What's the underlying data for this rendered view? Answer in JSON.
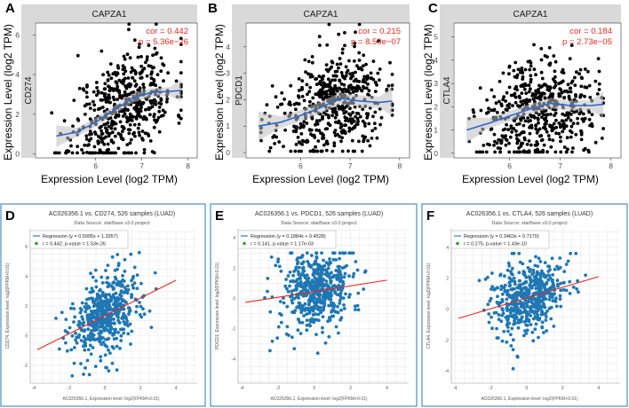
{
  "chart_data": [
    {
      "type": "scatter",
      "panel": "A",
      "strip_title": "CAPZA1",
      "xlabel": "Expression Level (log2 TPM)",
      "ylabel": "Expression Level (log2 TPM)",
      "y_gene": "CD274",
      "xlim": [
        4.7,
        8.2
      ],
      "ylim": [
        -0.2,
        6.6
      ],
      "xticks": [
        6,
        7,
        8
      ],
      "yticks": [
        0,
        2,
        4,
        6
      ],
      "corr_label": "cor = 0.442",
      "p_label": "p = 5.36e−26",
      "cor": 0.442,
      "n": 526,
      "seed": 11,
      "smooth": {
        "x": [
          5.15,
          5.6,
          6.0,
          6.4,
          6.8,
          7.2,
          7.6,
          7.85
        ],
        "y": [
          0.9,
          1.1,
          1.6,
          2.2,
          2.8,
          3.1,
          3.15,
          3.2
        ]
      }
    },
    {
      "type": "scatter",
      "panel": "B",
      "strip_title": "CAPZA1",
      "xlabel": "Expression Level (log2 TPM)",
      "ylabel": "Expression Level (log2 TPM)",
      "y_gene": "PDCD1",
      "xlim": [
        4.9,
        8.2
      ],
      "ylim": [
        -0.2,
        4.9
      ],
      "xticks": [
        6,
        7,
        8
      ],
      "yticks": [
        0,
        1,
        2,
        3,
        4
      ],
      "corr_label": "cor = 0.215",
      "p_label": "p = 8.59e−07",
      "cor": 0.215,
      "n": 526,
      "seed": 23,
      "smooth": {
        "x": [
          5.15,
          5.6,
          6.0,
          6.4,
          6.8,
          7.2,
          7.6,
          7.85
        ],
        "y": [
          1.0,
          1.15,
          1.4,
          1.7,
          2.05,
          1.95,
          1.9,
          1.95
        ]
      }
    },
    {
      "type": "scatter",
      "panel": "C",
      "strip_title": "CAPZA1",
      "xlabel": "Expression Level (log2 TPM)",
      "ylabel": "Expression Level (log2 TPM)",
      "y_gene": "CTLA4",
      "xlim": [
        4.9,
        8.2
      ],
      "ylim": [
        -0.2,
        5.6
      ],
      "xticks": [
        6,
        7,
        8
      ],
      "yticks": [
        0,
        1,
        2,
        3,
        4,
        5
      ],
      "corr_label": "cor = 0.184",
      "p_label": "p = 2.73e−05",
      "cor": 0.184,
      "n": 526,
      "seed": 37,
      "smooth": {
        "x": [
          5.15,
          5.6,
          6.0,
          6.4,
          6.8,
          7.2,
          7.6,
          7.85
        ],
        "y": [
          1.0,
          1.3,
          1.6,
          1.9,
          2.15,
          2.05,
          2.05,
          2.1
        ]
      }
    },
    {
      "type": "scatter",
      "panel": "D",
      "title": "AC026356.1 vs. CD274, 526 samples (LUAD)",
      "subtitle": "Data Source: starBase v3.0 project",
      "xlabel": "AC026356.1, Expression level: log2(FPKM+0.01)",
      "ylabel": "CD274, Expression level: log2(FPKM+0.01)",
      "legend_regression": "Regression (y = 0.5995x + 1.3357)",
      "legend_stat": "r = 0.442, p-value = 1.53e-26",
      "slope": 0.5995,
      "intercept": 1.3357,
      "xlim": [
        -4.2,
        5.2
      ],
      "ylim": [
        -3.2,
        7.2
      ],
      "xticks": [
        -4,
        -2,
        0,
        2,
        4
      ],
      "yticks": [
        -2,
        0,
        2,
        4,
        6
      ],
      "n": 526,
      "seed": 53,
      "sx": 1.0,
      "sy": 1.35
    },
    {
      "type": "scatter",
      "panel": "E",
      "title": "AC026356.1 vs. PDCD1, 526 samples (LUAD)",
      "subtitle": "Data Source: starBase v3.0 project",
      "xlabel": "AC026356.1, Expression level: log2(FPKM+0.01)",
      "ylabel": "PDCD1, Expression level: log2(FPKM+0.01)",
      "legend_regression": "Regression (y = 0.1884x + 0.4528)",
      "legend_stat": "r = 0.141, p-value = 1.17e-03",
      "slope": 0.1884,
      "intercept": 0.4528,
      "xlim": [
        -4.2,
        5.2
      ],
      "ylim": [
        -5.6,
        4.6
      ],
      "xticks": [
        -4,
        -2,
        0,
        2,
        4
      ],
      "yticks": [
        -4,
        -2,
        0,
        2,
        4
      ],
      "n": 526,
      "seed": 71,
      "sx": 1.0,
      "sy": 1.3
    },
    {
      "type": "scatter",
      "panel": "F",
      "title": "AC026356.1 vs. CTLA4, 526 samples (LUAD)",
      "subtitle": "Data Source: starBase v3.0 project",
      "xlabel": "AC026356.1, Expression level: log2(FPKM+0.01)",
      "ylabel": "CTLA4, Expression level: log2(FPKM+0.01)",
      "legend_regression": "Regression (y = 0.3463x + 0.7170)",
      "legend_stat": "r = 0.275, p-value = 1.43e-10",
      "slope": 0.3463,
      "intercept": 0.717,
      "xlim": [
        -4.2,
        5.2
      ],
      "ylim": [
        -4.8,
        5.2
      ],
      "xticks": [
        -4,
        -2,
        0,
        2,
        4
      ],
      "yticks": [
        -4,
        -2,
        0,
        2,
        4
      ],
      "n": 526,
      "seed": 89,
      "sx": 1.0,
      "sy": 1.2
    }
  ],
  "colors": {
    "strip_bg": "#d9d9d9",
    "ribbon": "#bfbfbf",
    "smooth_line": "#3366cc",
    "point_top": "#000000",
    "point_bottom": "#1f77b4",
    "reg_line": "#e8271f",
    "corr_text": "#e8271f",
    "frame_bottom": "#4a90c8",
    "grid_bottom": "#e6e6e6",
    "legend_green": "#2ca02c"
  }
}
